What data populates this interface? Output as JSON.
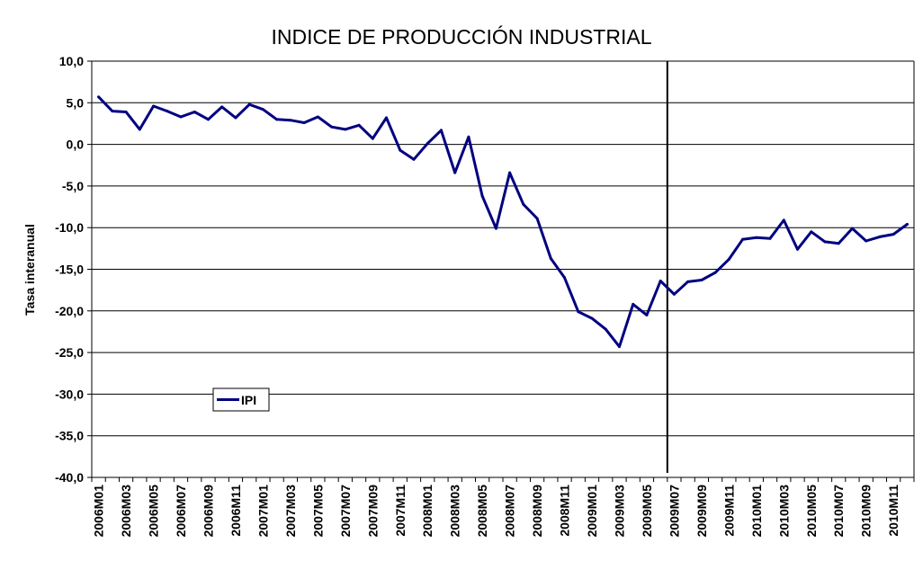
{
  "chart_data": {
    "type": "line",
    "title": "INDICE DE PRODUCCIÓN INDUSTRIAL",
    "xlabel": "",
    "ylabel": "Tasa interanual",
    "ylim": [
      -40,
      10
    ],
    "yticks": [
      "10,0",
      "5,0",
      "0,0",
      "-5,0",
      "-10,0",
      "-15,0",
      "-20,0",
      "-25,0",
      "-30,0",
      "-35,0",
      "-40,0"
    ],
    "ytick_values": [
      10,
      5,
      0,
      -5,
      -10,
      -15,
      -20,
      -25,
      -30,
      -35,
      -40
    ],
    "grid": true,
    "legend_position": "left",
    "line_color": "#000080",
    "categories": [
      "2006M01",
      "2006M02",
      "2006M03",
      "2006M04",
      "2006M05",
      "2006M06",
      "2006M07",
      "2006M08",
      "2006M09",
      "2006M10",
      "2006M11",
      "2006M12",
      "2007M01",
      "2007M02",
      "2007M03",
      "2007M04",
      "2007M05",
      "2007M06",
      "2007M07",
      "2007M08",
      "2007M09",
      "2007M10",
      "2007M11",
      "2007M12",
      "2008M01",
      "2008M02",
      "2008M03",
      "2008M04",
      "2008M05",
      "2008M06",
      "2008M07",
      "2008M08",
      "2008M09",
      "2008M10",
      "2008M11",
      "2008M12",
      "2009M01",
      "2009M02",
      "2009M03",
      "2009M04",
      "2009M05",
      "2009M06",
      "2009M07",
      "2009M08",
      "2009M09",
      "2009M10",
      "2009M11",
      "2009M12",
      "2010M01",
      "2010M02",
      "2010M03",
      "2010M04",
      "2010M05",
      "2010M06",
      "2010M07",
      "2010M08",
      "2010M09",
      "2010M10",
      "2010M11",
      "2010M12"
    ],
    "tick_labels": [
      "2006M01",
      "2006M03",
      "2006M05",
      "2006M07",
      "2006M09",
      "2006M11",
      "2007M01",
      "2007M03",
      "2007M05",
      "2007M07",
      "2007M09",
      "2007M11",
      "2008M01",
      "2008M03",
      "2008M05",
      "2008M07",
      "2008M09",
      "2008M11",
      "2009M01",
      "2009M03",
      "2009M05",
      "2009M07",
      "2009M09",
      "2009M11",
      "2010M01",
      "2010M03",
      "2010M05",
      "2010M07",
      "2010M09",
      "2010M11"
    ],
    "series": [
      {
        "name": "IPI",
        "values": [
          5.7,
          4.0,
          3.9,
          1.8,
          4.6,
          4.0,
          3.3,
          3.9,
          3.0,
          4.5,
          3.2,
          4.8,
          4.2,
          3.0,
          2.9,
          2.6,
          3.3,
          2.1,
          1.8,
          2.3,
          0.7,
          3.2,
          -0.7,
          -1.8,
          0.1,
          1.7,
          -3.4,
          0.9,
          -6.2,
          -10.1,
          -3.4,
          -7.2,
          -8.9,
          -13.7,
          -16.0,
          -20.1,
          -20.9,
          -22.2,
          -24.3,
          -19.2,
          -20.5,
          -16.4,
          -18.0,
          -16.5,
          -16.3,
          -15.4,
          -13.8,
          -11.4,
          -11.2,
          -11.3,
          -9.1,
          -12.6,
          -10.5,
          -11.7,
          -11.9,
          -10.1,
          -11.6,
          -11.1,
          -10.8,
          -9.6
        ]
      }
    ],
    "annotations": [
      {
        "type": "vertical-line",
        "x": "2009M06"
      }
    ]
  }
}
